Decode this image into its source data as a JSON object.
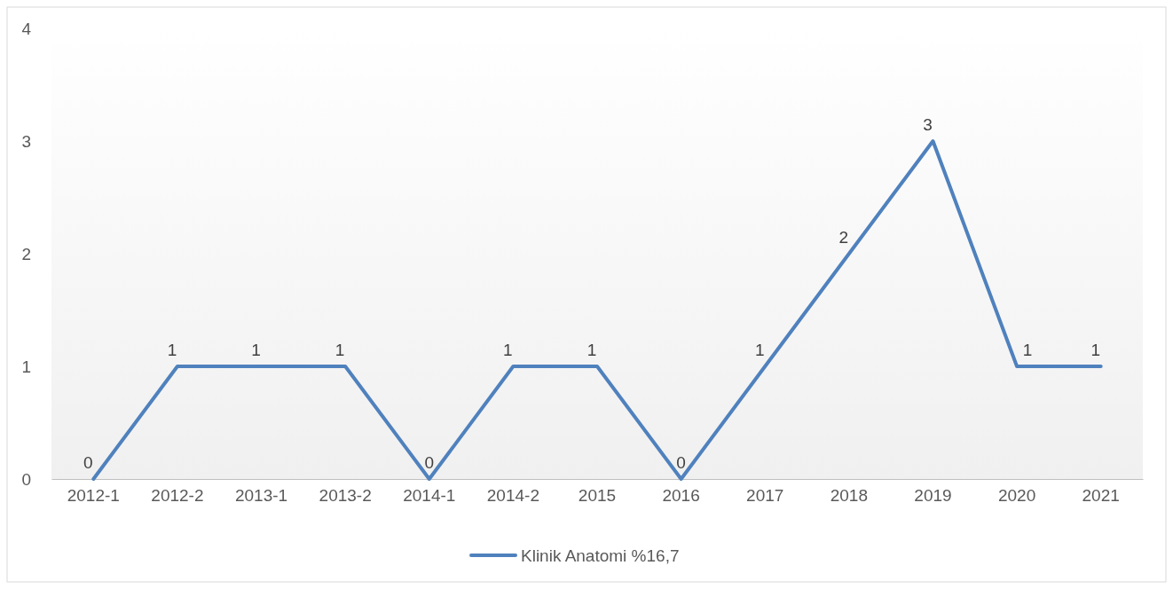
{
  "chart_data": {
    "type": "line",
    "categories": [
      "2012-1",
      "2012-2",
      "2013-1",
      "2013-2",
      "2014-1",
      "2014-2",
      "2015",
      "2016",
      "2017",
      "2018",
      "2019",
      "2020",
      "2021"
    ],
    "series": [
      {
        "name": "Klinik Anatomi %16,7",
        "color": "#4f81bd",
        "values": [
          0,
          1,
          1,
          1,
          0,
          1,
          1,
          0,
          1,
          2,
          3,
          1,
          1
        ]
      }
    ],
    "ylim": [
      0,
      4
    ],
    "yticks": [
      0,
      1,
      2,
      3,
      4
    ],
    "grid": false,
    "legend": "bottom",
    "data_labels": true,
    "marker": "none",
    "line_style": "solid"
  }
}
